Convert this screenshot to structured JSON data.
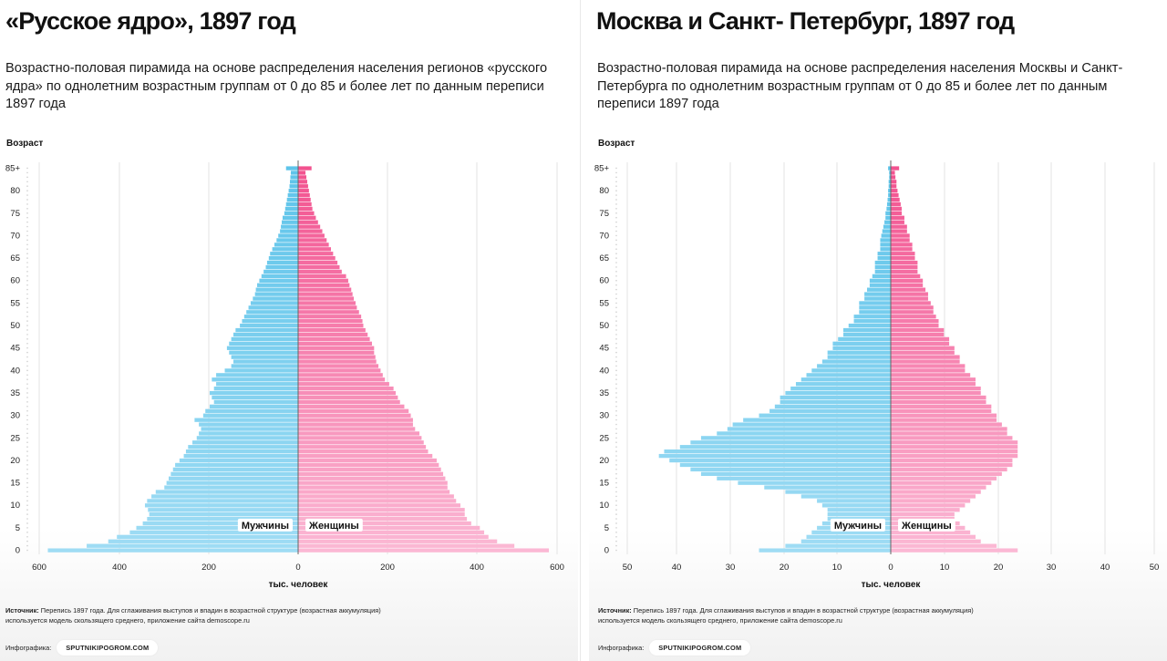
{
  "left_panel": {
    "title": "«Русское ядро», 1897 год",
    "subtitle": "Возрастно-половая пирамида на основе распределения населения регионов «русского ядра» по однолетним возрастным группам от 0 до 85 и более лет по данным переписи 1897 года",
    "y_axis_title": "Возраст",
    "x_axis_title": "тыс. человек",
    "male_label": "Мужчины",
    "female_label": "Женщины",
    "source_label": "Источник:",
    "source_text": " Перепись 1897 года. Для сглаживания выступов и впадин в возрастной структуре (возрастная аккумуляция) используется модель скользящего среднего, приложение сайта demoscope.ru",
    "infographic_label": "Инфографика:",
    "brand": "SPUTNIKIPOGROM.COM"
  },
  "right_panel": {
    "title": "Москва и Санкт- Петербург, 1897 год",
    "subtitle": "Возрастно-половая пирамида на основе распределения населения Москвы и Санкт-Петербурга по однолетним возрастным группам от 0 до 85 и более лет по данным переписи 1897 года",
    "y_axis_title": "Возраст",
    "x_axis_title": "тыс. человек",
    "male_label": "Мужчины",
    "female_label": "Женщины",
    "source_label": "Источник:",
    "source_text": " Перепись 1897 года. Для сглаживания выступов и впадин в возрастной структуре (возрастная аккумуляция) используется модель скользящего среднего, приложение сайта demoscope.ru",
    "infographic_label": "Инфографика:",
    "brand": "SPUTNIKIPOGROM.COM"
  },
  "colors": {
    "male_light": "#5ec4ea",
    "male_dark": "#9fdcf4",
    "female_light": "#f2528f",
    "female_dark": "#fbb8d4",
    "grid": "#e3e3e3"
  },
  "chart_data": [
    {
      "type": "bar",
      "title": "«Русское ядро», 1897 год",
      "xlabel": "тыс. человек",
      "ylabel": "Возраст",
      "x_ticks": [
        "600",
        "400",
        "200",
        "0",
        "200",
        "400",
        "600"
      ],
      "y_ticks": [
        "0",
        "5",
        "10",
        "15",
        "20",
        "25",
        "30",
        "35",
        "40",
        "45",
        "50",
        "55",
        "60",
        "65",
        "70",
        "75",
        "80",
        "85+"
      ],
      "xlim": [
        -600,
        600
      ],
      "ages": [
        0,
        1,
        2,
        3,
        4,
        5,
        6,
        7,
        8,
        9,
        10,
        11,
        12,
        13,
        14,
        15,
        16,
        17,
        18,
        19,
        20,
        21,
        22,
        23,
        24,
        25,
        26,
        27,
        28,
        29,
        30,
        31,
        32,
        33,
        34,
        35,
        36,
        37,
        38,
        39,
        40,
        41,
        42,
        43,
        44,
        45,
        46,
        47,
        48,
        49,
        50,
        51,
        52,
        53,
        54,
        55,
        56,
        57,
        58,
        59,
        60,
        61,
        62,
        63,
        64,
        65,
        66,
        67,
        68,
        69,
        70,
        71,
        72,
        73,
        74,
        75,
        76,
        77,
        78,
        79,
        80,
        81,
        82,
        83,
        84,
        85
      ],
      "series": [
        {
          "name": "Мужчины",
          "values": [
            580,
            490,
            440,
            420,
            390,
            375,
            360,
            350,
            345,
            348,
            355,
            350,
            340,
            330,
            310,
            305,
            300,
            295,
            290,
            285,
            275,
            265,
            260,
            255,
            245,
            235,
            230,
            225,
            230,
            240,
            220,
            215,
            205,
            195,
            200,
            205,
            195,
            190,
            200,
            190,
            170,
            155,
            150,
            155,
            160,
            165,
            160,
            155,
            150,
            145,
            135,
            130,
            125,
            120,
            115,
            110,
            105,
            100,
            98,
            95,
            90,
            85,
            80,
            75,
            72,
            68,
            65,
            60,
            55,
            50,
            46,
            42,
            40,
            38,
            36,
            32,
            30,
            28,
            26,
            24,
            22,
            20,
            19,
            18,
            17,
            28
          ],
          "values_female": [
            580,
            500,
            460,
            440,
            430,
            420,
            400,
            390,
            385,
            385,
            375,
            365,
            360,
            350,
            345,
            345,
            340,
            335,
            330,
            325,
            320,
            310,
            300,
            295,
            290,
            285,
            280,
            270,
            265,
            265,
            260,
            255,
            245,
            235,
            230,
            225,
            220,
            210,
            200,
            195,
            190,
            185,
            180,
            178,
            175,
            175,
            170,
            165,
            160,
            155,
            150,
            148,
            145,
            140,
            135,
            132,
            128,
            125,
            122,
            118,
            115,
            110,
            100,
            95,
            90,
            85,
            80,
            75,
            70,
            65,
            60,
            55,
            50,
            45,
            40,
            36,
            32,
            30,
            28,
            26,
            24,
            22,
            20,
            18,
            16,
            30
          ]
        }
      ]
    },
    {
      "type": "bar",
      "title": "Москва и Санкт- Петербург, 1897 год",
      "xlabel": "тыс. человек",
      "ylabel": "Возраст",
      "x_ticks": [
        "50",
        "40",
        "30",
        "20",
        "10",
        "0",
        "10",
        "20",
        "30",
        "40",
        "50"
      ],
      "y_ticks": [
        "0",
        "5",
        "10",
        "15",
        "20",
        "25",
        "30",
        "35",
        "40",
        "45",
        "50",
        "55",
        "60",
        "65",
        "70",
        "75",
        "80",
        "85+"
      ],
      "xlim": [
        -50,
        50
      ],
      "ages": [
        0,
        1,
        2,
        3,
        4,
        5,
        6,
        7,
        8,
        9,
        10,
        11,
        12,
        13,
        14,
        15,
        16,
        17,
        18,
        19,
        20,
        21,
        22,
        23,
        24,
        25,
        26,
        27,
        28,
        29,
        30,
        31,
        32,
        33,
        34,
        35,
        36,
        37,
        38,
        39,
        40,
        41,
        42,
        43,
        44,
        45,
        46,
        47,
        48,
        49,
        50,
        51,
        52,
        53,
        54,
        55,
        56,
        57,
        58,
        59,
        60,
        61,
        62,
        63,
        64,
        65,
        66,
        67,
        68,
        69,
        70,
        71,
        72,
        73,
        74,
        75,
        76,
        77,
        78,
        79,
        80,
        81,
        82,
        83,
        84,
        85
      ],
      "series": [
        {
          "name": "Мужчины",
          "values": [
            25,
            20,
            17,
            16,
            15,
            14,
            13,
            12,
            12,
            12,
            13,
            14,
            17,
            20,
            24,
            29,
            33,
            36,
            38,
            40,
            42,
            44,
            43,
            40,
            38,
            36,
            33,
            31,
            30,
            28,
            25,
            23,
            22,
            21,
            21,
            20,
            19,
            18,
            17,
            16,
            15,
            14,
            13,
            12,
            12,
            11,
            11,
            10,
            9,
            9,
            8,
            7,
            7,
            6,
            6,
            6,
            5,
            5,
            4.5,
            4,
            4,
            3.5,
            3,
            3,
            3,
            2.5,
            2.5,
            2,
            2,
            2,
            1.8,
            1.6,
            1.4,
            1.2,
            1,
            1,
            0.8,
            0.7,
            0.6,
            0.5,
            0.5,
            0.4,
            0.4,
            0.3,
            0.3,
            0.5
          ],
          "values_female": [
            24,
            20,
            17,
            16,
            15,
            14,
            13,
            12,
            12,
            13,
            14,
            15,
            16,
            17,
            18,
            19,
            20,
            21,
            22,
            23,
            23,
            24,
            24,
            24,
            24,
            23,
            22,
            22,
            21,
            20,
            20,
            19,
            19,
            18,
            18,
            17,
            17,
            16,
            16,
            15,
            14,
            14,
            13,
            13,
            12,
            12,
            11,
            11,
            10,
            10,
            9,
            9,
            8.5,
            8,
            8,
            7.5,
            7,
            7,
            6.5,
            6,
            6,
            5.5,
            5,
            5,
            5,
            4.5,
            4.5,
            4,
            4,
            3.5,
            3.5,
            3,
            3,
            2.5,
            2.5,
            2,
            2,
            1.8,
            1.6,
            1.4,
            1.2,
            1,
            1,
            0.8,
            0.7,
            1.5
          ]
        }
      ]
    }
  ]
}
